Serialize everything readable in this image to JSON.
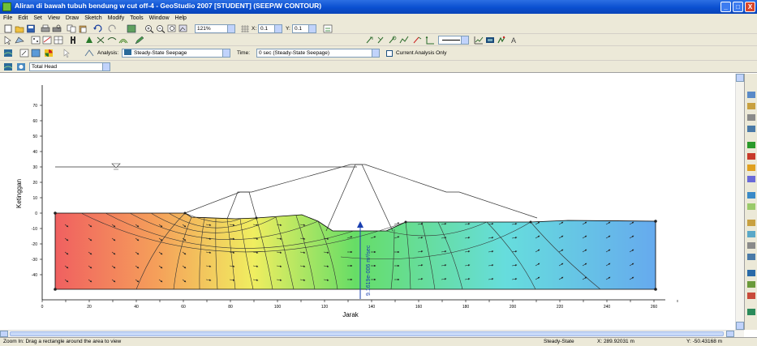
{
  "window": {
    "title": "Aliran di bawah tubuh bendung w cut off-4 - GeoStudio 2007 [STUDENT] (SEEP/W CONTOUR)",
    "buttons": {
      "minimize": "_",
      "maximize": "□",
      "close": "X"
    }
  },
  "menu": [
    "File",
    "Edit",
    "Set",
    "View",
    "Draw",
    "Sketch",
    "Modify",
    "Tools",
    "Window",
    "Help"
  ],
  "toolbar": {
    "zoom_value": "121%",
    "x_grid_label": "X:",
    "x_grid_value": "0.1",
    "y_grid_label": "Y:",
    "y_grid_value": "0.1",
    "analysis_label": "Analysis:",
    "analysis_value": "Steady-State Seepage",
    "time_label": "Time:",
    "time_value": "0 sec (Steady-State Seepage)",
    "current_only_label": "Current Analysis Only",
    "contour_value": "Total Head"
  },
  "plot": {
    "y_axis_label": "Ketinggan",
    "x_axis_label": "Jarak",
    "x_ticks": [
      "0",
      "10",
      "20",
      "30",
      "40",
      "50",
      "60",
      "70",
      "80",
      "90",
      "100",
      "110",
      "120",
      "130",
      "140",
      "150",
      "160",
      "170",
      "180",
      "190",
      "200",
      "210",
      "220",
      "230",
      "240",
      "250",
      "260",
      "270"
    ],
    "y_ticks": [
      "-40",
      "-30",
      "-20",
      "-10",
      "0",
      "10",
      "20",
      "30",
      "40",
      "50",
      "60",
      "70"
    ],
    "flux_label": "9.1619e-006 m³/sec",
    "colors": {
      "red": "#f06060",
      "orange": "#f5a05a",
      "yellow": "#f0ee60",
      "green": "#66dd66",
      "cyan": "#66dddd",
      "blue": "#66aaee"
    }
  },
  "status": {
    "hint": "Zoom In: Drag a rectangle around the area to view",
    "mode": "Steady-State",
    "x_coord": "X: 289.92031 m",
    "y_coord": "Y: -50.43168 m"
  }
}
